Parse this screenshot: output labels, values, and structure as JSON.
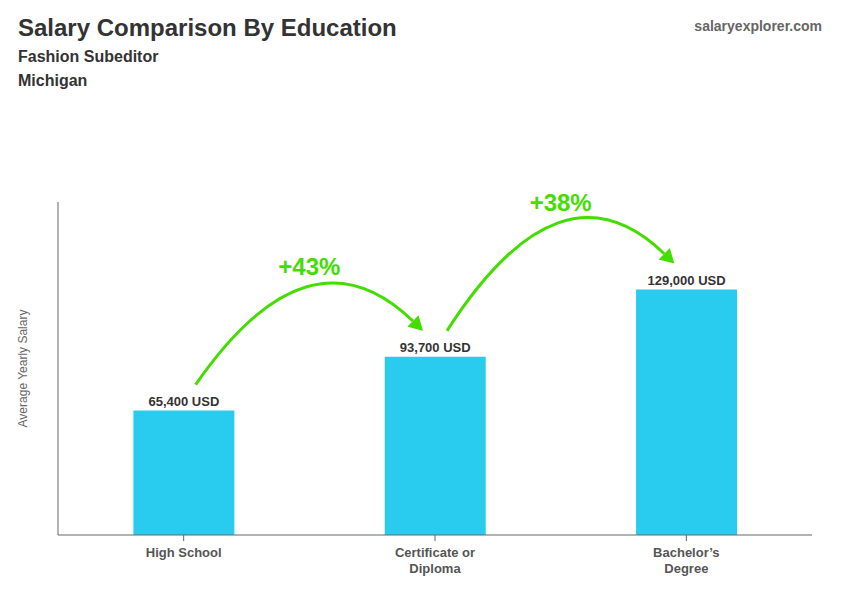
{
  "chart_data": {
    "type": "bar",
    "title": "Salary Comparison By Education",
    "subtitle": [
      "Fashion Subeditor",
      "Michigan"
    ],
    "source": "salaryexplorer.com",
    "categories": [
      "High School",
      "Certificate or\nDiploma",
      "Bachelor’s\nDegree"
    ],
    "values": [
      65400,
      93700,
      129000
    ],
    "value_labels": [
      "65,400 USD",
      "93,700 USD",
      "129,000 USD"
    ],
    "data_labels": true,
    "color": "#29ccee",
    "ylim": [
      0,
      175000
    ],
    "ylabel": "Average Yearly Salary",
    "tick_labels": "x",
    "grid": false,
    "annotations": [
      {
        "text": "+43%",
        "color": "#44dd00"
      },
      {
        "text": "+38%",
        "color": "#44dd00"
      }
    ]
  }
}
